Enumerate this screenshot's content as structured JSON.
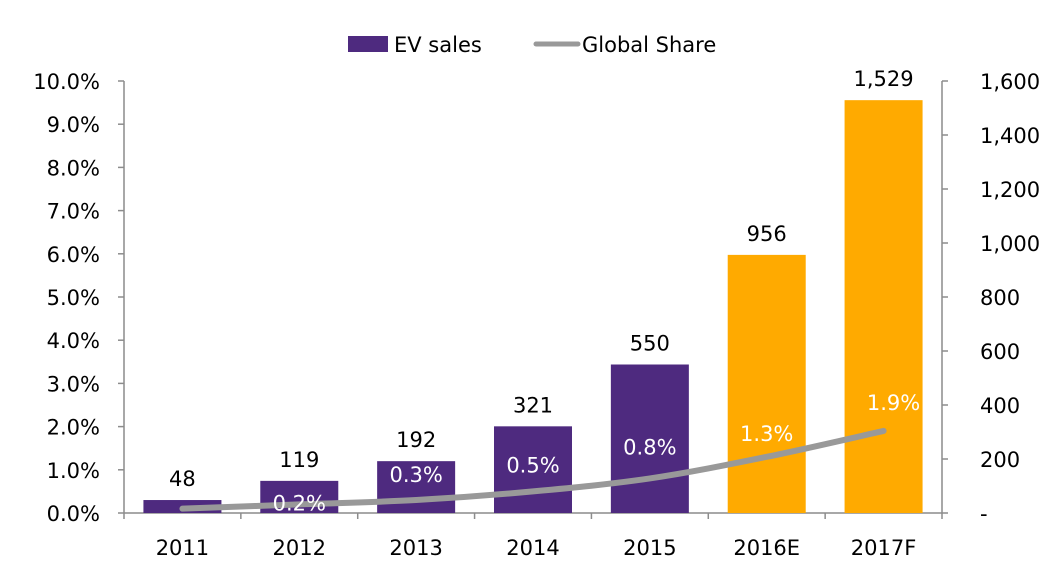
{
  "chart_data": {
    "type": "bar",
    "categories": [
      "2011",
      "2012",
      "2013",
      "2014",
      "2015",
      "2016E",
      "2017F"
    ],
    "series": [
      {
        "name": "EV sales",
        "axis": "right",
        "values": [
          48,
          119,
          192,
          321,
          550,
          956,
          1529
        ],
        "labels": [
          "48",
          "119",
          "192",
          "321",
          "550",
          "956",
          "1,529"
        ],
        "colors": [
          "#4e2a7f",
          "#4e2a7f",
          "#4e2a7f",
          "#4e2a7f",
          "#4e2a7f",
          "#ffaa00",
          "#ffaa00"
        ]
      },
      {
        "name": "Global Share",
        "type": "line",
        "axis": "left",
        "values": [
          0.1,
          0.2,
          0.3,
          0.5,
          0.8,
          1.3,
          1.9
        ],
        "labels": [
          "",
          "0.2%",
          "0.3%",
          "0.5%",
          "0.8%",
          "1.3%",
          "1.9%"
        ],
        "color": "#999999"
      }
    ],
    "y_left": {
      "ylim": [
        0,
        10
      ],
      "ticks": [
        "0.0%",
        "1.0%",
        "2.0%",
        "3.0%",
        "4.0%",
        "5.0%",
        "6.0%",
        "7.0%",
        "8.0%",
        "9.0%",
        "10.0%"
      ]
    },
    "y_right": {
      "ylim": [
        0,
        1600
      ],
      "ticks": [
        "-",
        "200",
        "400",
        "600",
        "800",
        "1,000",
        "1,200",
        "1,400",
        "1,600"
      ]
    },
    "legend": [
      "EV sales",
      "Global Share"
    ],
    "legend_position": "top-center",
    "grid": false
  }
}
